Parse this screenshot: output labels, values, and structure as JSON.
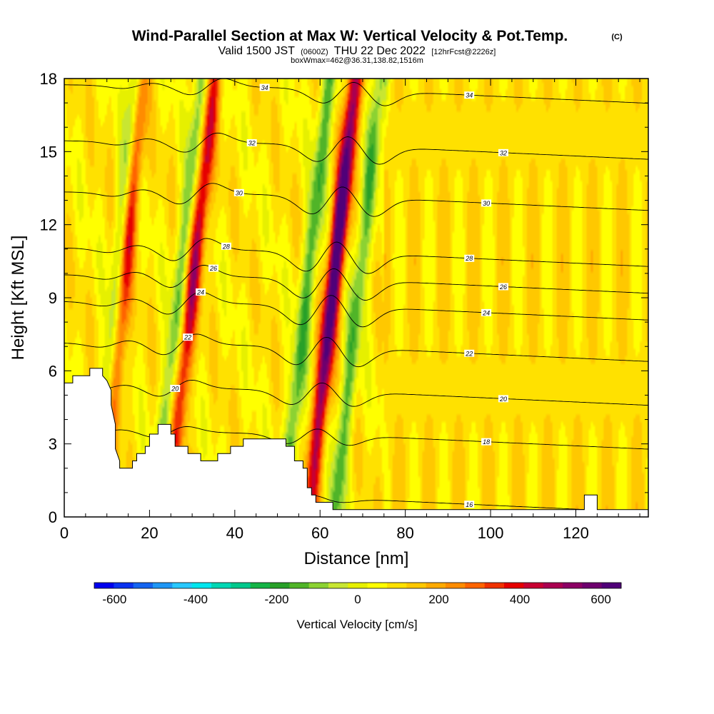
{
  "header": {
    "title": "Wind-Parallel Section at Max W: Vertical Velocity & Pot.Temp.",
    "copyright": "(C)",
    "valid_prefix": "Valid 1500 JST",
    "valid_utc": "(0600Z)",
    "valid_date": "THU 22 Dec 2022",
    "forecast": "[12hrFcst@2226z]",
    "box_info": "boxWmax=462@36.31,138.82,1516m"
  },
  "chart_data": {
    "type": "heatmap",
    "xlabel": "Distance [nm]",
    "ylabel": "Height [Kft MSL]",
    "xlim": [
      0,
      137
    ],
    "ylim": [
      0,
      18
    ],
    "x_ticks": [
      "0",
      "20",
      "40",
      "60",
      "80",
      "100",
      "120"
    ],
    "x_tick_values": [
      0,
      20,
      40,
      60,
      80,
      100,
      120
    ],
    "y_ticks": [
      "0",
      "3",
      "6",
      "9",
      "12",
      "15",
      "18"
    ],
    "y_tick_values": [
      0,
      3,
      6,
      9,
      12,
      15,
      18
    ],
    "colorbar": {
      "label": "Vertical Velocity [cm/s]",
      "ticks": [
        "-600",
        "-400",
        "-200",
        "0",
        "200",
        "400",
        "600"
      ],
      "tick_values": [
        -600,
        -400,
        -200,
        0,
        200,
        400,
        600
      ],
      "min": -650,
      "max": 650,
      "colors": [
        "#0000ee",
        "#0a32f0",
        "#1464f0",
        "#1e96f5",
        "#28c8ff",
        "#00e6ee",
        "#00d7b4",
        "#00c88c",
        "#14b446",
        "#28a028",
        "#50b428",
        "#8cd232",
        "#c8e632",
        "#e6f000",
        "#ffff00",
        "#ffe100",
        "#ffc800",
        "#ffaa00",
        "#ff8c00",
        "#ff6400",
        "#f03200",
        "#e60000",
        "#c80032",
        "#aa0050",
        "#8c0064",
        "#6e006e",
        "#500078"
      ]
    },
    "series": [
      {
        "name": "updraft",
        "values": [
          {
            "x": 12,
            "w": 350,
            "tilt": 0.5
          },
          {
            "x": 28,
            "w": 300,
            "tilt": 0.6
          },
          {
            "x": 61,
            "w": 470,
            "tilt": 0.6
          }
        ]
      },
      {
        "name": "downdraft",
        "values": [
          {
            "x": 11,
            "w": -320,
            "tilt": 0.5
          },
          {
            "x": 25,
            "w": -200,
            "tilt": 0.6
          },
          {
            "x": 55,
            "w": -240,
            "tilt": 0.6
          },
          {
            "x": 67,
            "w": -220,
            "tilt": 0.6
          }
        ]
      }
    ],
    "terrain": [
      [
        0,
        5.5
      ],
      [
        2,
        5.5
      ],
      [
        2,
        5.8
      ],
      [
        6,
        5.8
      ],
      [
        6,
        6.1
      ],
      [
        9,
        6.1
      ],
      [
        9,
        5.8
      ],
      [
        10,
        5.6
      ],
      [
        11,
        5.2
      ],
      [
        11,
        4.6
      ],
      [
        12,
        3.8
      ],
      [
        12,
        2.8
      ],
      [
        13,
        2.3
      ],
      [
        13,
        2.0
      ],
      [
        16,
        2.0
      ],
      [
        16,
        2.3
      ],
      [
        17,
        2.3
      ],
      [
        17,
        2.6
      ],
      [
        19,
        2.6
      ],
      [
        19,
        2.9
      ],
      [
        20,
        2.9
      ],
      [
        20,
        3.4
      ],
      [
        22,
        3.4
      ],
      [
        22,
        3.8
      ],
      [
        25,
        3.8
      ],
      [
        25,
        3.4
      ],
      [
        26,
        3.4
      ],
      [
        26,
        2.9
      ],
      [
        29,
        2.9
      ],
      [
        29,
        2.6
      ],
      [
        32,
        2.6
      ],
      [
        32,
        2.3
      ],
      [
        36,
        2.3
      ],
      [
        36,
        2.6
      ],
      [
        39,
        2.6
      ],
      [
        39,
        2.9
      ],
      [
        42,
        2.9
      ],
      [
        42,
        3.2
      ],
      [
        46,
        3.2
      ],
      [
        46,
        3.2
      ],
      [
        52,
        3.2
      ],
      [
        52,
        2.9
      ],
      [
        54,
        2.9
      ],
      [
        54,
        2.3
      ],
      [
        56,
        2.3
      ],
      [
        56,
        2.0
      ],
      [
        57,
        2.0
      ],
      [
        57,
        1.2
      ],
      [
        58,
        1.2
      ],
      [
        58,
        0.9
      ],
      [
        59,
        0.9
      ],
      [
        59,
        0.6
      ],
      [
        61,
        0.6
      ],
      [
        61,
        0.6
      ],
      [
        63,
        0.6
      ],
      [
        63,
        0.3
      ],
      [
        72,
        0.3
      ],
      [
        72,
        0.3
      ],
      [
        80,
        0.3
      ],
      [
        80,
        0.3
      ],
      [
        118,
        0.3
      ],
      [
        118,
        0.3
      ],
      [
        122,
        0.3
      ],
      [
        122,
        0.9
      ],
      [
        125,
        0.9
      ],
      [
        125,
        0.3
      ],
      [
        128,
        0.3
      ],
      [
        128,
        0.3
      ],
      [
        137,
        0.3
      ]
    ],
    "theta_contours": [
      {
        "label": "16",
        "base": 0.8,
        "amp": 0.6
      },
      {
        "label": "18",
        "base": 3.4,
        "amp": 1.5
      },
      {
        "label": "20",
        "base": 5.2,
        "amp": 2.2
      },
      {
        "label": "22",
        "base": 7.0,
        "amp": 2.8
      },
      {
        "label": "24",
        "base": 8.7,
        "amp": 3.0
      },
      {
        "label": "26",
        "base": 9.8,
        "amp": 3.0
      },
      {
        "label": "28",
        "base": 10.9,
        "amp": 3.0
      },
      {
        "label": "30",
        "base": 13.2,
        "amp": 2.8
      },
      {
        "label": "32",
        "base": 15.3,
        "amp": 2.6
      },
      {
        "label": "34",
        "base": 17.6,
        "amp": 2.2
      }
    ]
  }
}
